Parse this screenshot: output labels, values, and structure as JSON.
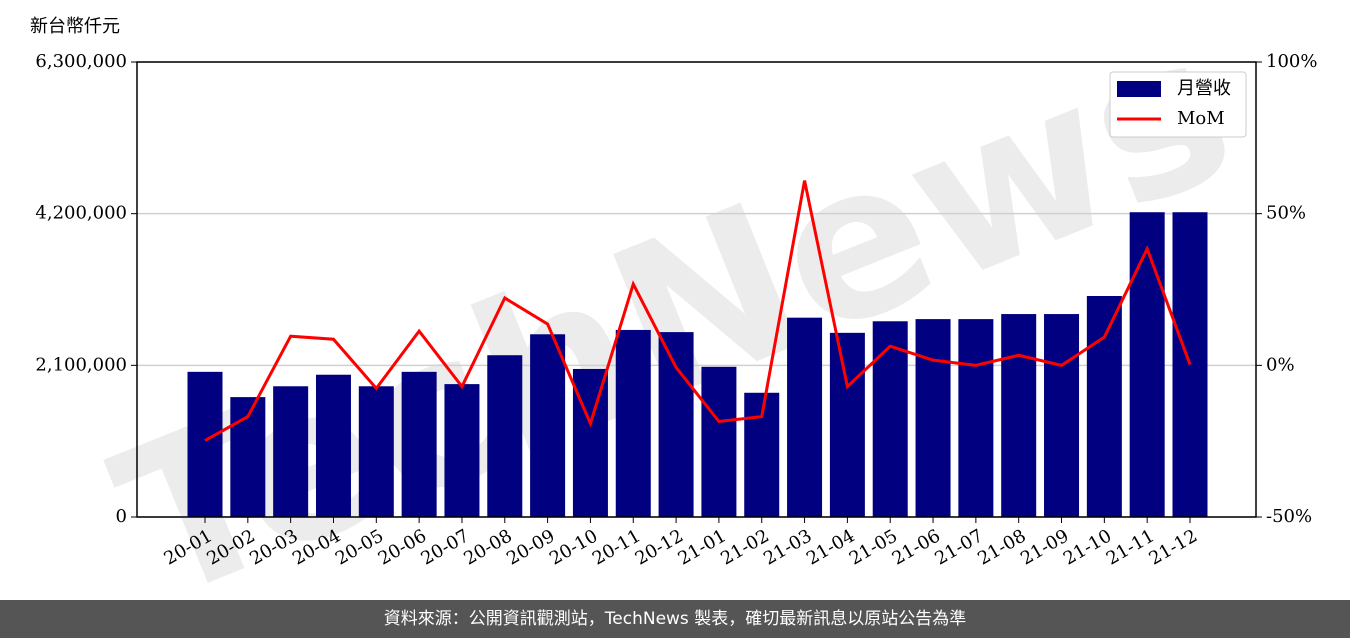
{
  "chart_data": {
    "type": "bar_line",
    "y_label": "新台幣仟元",
    "watermark": "TechNews",
    "categories": [
      "20-01",
      "20-02",
      "20-03",
      "20-04",
      "20-05",
      "20-06",
      "20-07",
      "20-08",
      "20-09",
      "20-10",
      "20-11",
      "20-12",
      "21-01",
      "21-02",
      "21-03",
      "21-04",
      "21-05",
      "21-06",
      "21-07",
      "21-08",
      "21-09",
      "21-10",
      "21-11",
      "21-12"
    ],
    "series": [
      {
        "name": "月營收",
        "type": "bar",
        "color": "#000080",
        "values": [
          2010000,
          1660000,
          1810000,
          1970000,
          1810000,
          2010000,
          1840000,
          2240000,
          2530000,
          2050000,
          2590000,
          2560000,
          2080000,
          1720000,
          2760000,
          2550000,
          2710000,
          2740000,
          2740000,
          2810000,
          2810000,
          3060000,
          4220000,
          4220000
        ]
      },
      {
        "name": "MoM",
        "type": "line",
        "axis": "y2",
        "color": "#ff0000",
        "values": [
          -24.8,
          -16.9,
          9.6,
          8.6,
          -7.6,
          11.3,
          -7.0,
          22.2,
          13.6,
          -19.2,
          26.8,
          -0.7,
          -18.5,
          -16.9,
          60.9,
          -7.0,
          6.3,
          1.7,
          0,
          3.3,
          0,
          9.3,
          38.4,
          0.3
        ]
      }
    ],
    "ylim": [
      0,
      6300000
    ],
    "yticks": [
      0,
      {
        "value": 2100000,
        "label": "2,100,000"
      },
      {
        "value": 4200000,
        "label": "4,200,000"
      },
      {
        "value": 6300000,
        "label": "6,300,000"
      }
    ],
    "y2lim": [
      -50,
      100
    ],
    "y2ticks": [
      {
        "value": -50,
        "label": "-50%"
      },
      {
        "value": 0,
        "label": "0%"
      },
      {
        "value": 50,
        "label": "50%"
      },
      {
        "value": 100,
        "label": "100%"
      }
    ],
    "grid": true,
    "legend": "upper right",
    "footer": "資料來源：公開資訊觀測站，TechNews 製表，確切最新訊息以原站公告為準"
  }
}
